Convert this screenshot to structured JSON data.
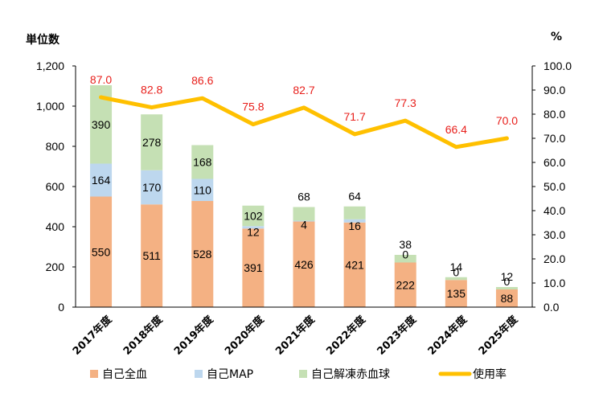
{
  "chart_data": {
    "type": "bar",
    "stacked": true,
    "categories": [
      "2017年度",
      "2018年度",
      "2019年度",
      "2020年度",
      "2021年度",
      "2022年度",
      "2023年度",
      "2024年度",
      "2025年度"
    ],
    "series": [
      {
        "name": "自己全血",
        "color": "#f4b183",
        "values": [
          550,
          511,
          528,
          391,
          426,
          421,
          222,
          135,
          88
        ]
      },
      {
        "name": "自己MAP",
        "color": "#bdd7ee",
        "values": [
          164,
          170,
          110,
          12,
          4,
          16,
          0,
          0,
          0
        ]
      },
      {
        "name": "自己解凍赤血球",
        "color": "#c5e0b4",
        "values": [
          390,
          278,
          168,
          102,
          68,
          64,
          38,
          14,
          12
        ]
      }
    ],
    "segment_labels": [
      [
        "550",
        "511",
        "528",
        "391",
        "426",
        "421",
        "222",
        "135",
        "88"
      ],
      [
        "164",
        "170",
        "110",
        "12",
        "4",
        "16",
        "0",
        "0",
        "0"
      ],
      [
        "390",
        "278",
        "168",
        "102",
        "68",
        "64",
        "38",
        "14",
        "12"
      ]
    ],
    "line_series": {
      "name": "使用率",
      "color": "#ffc000",
      "values": [
        87.0,
        82.8,
        86.6,
        75.8,
        82.7,
        71.7,
        77.3,
        66.4,
        70.0
      ]
    },
    "rate_labels": [
      "87.0",
      "82.8",
      "86.6",
      "75.8",
      "82.7",
      "71.7",
      "77.3",
      "66.4",
      "70.0"
    ],
    "y_left": {
      "title": "単位数",
      "min": 0,
      "max": 1200,
      "ticks": [
        "0",
        "200",
        "400",
        "600",
        "800",
        "1,000",
        "1,200"
      ]
    },
    "y_right": {
      "title": "%",
      "min": 0,
      "max": 100,
      "ticks": [
        "0.0",
        "10.0",
        "20.0",
        "30.0",
        "40.0",
        "50.0",
        "60.0",
        "70.0",
        "80.0",
        "90.0",
        "100.0"
      ]
    },
    "grid": false,
    "legend_position": "bottom"
  }
}
